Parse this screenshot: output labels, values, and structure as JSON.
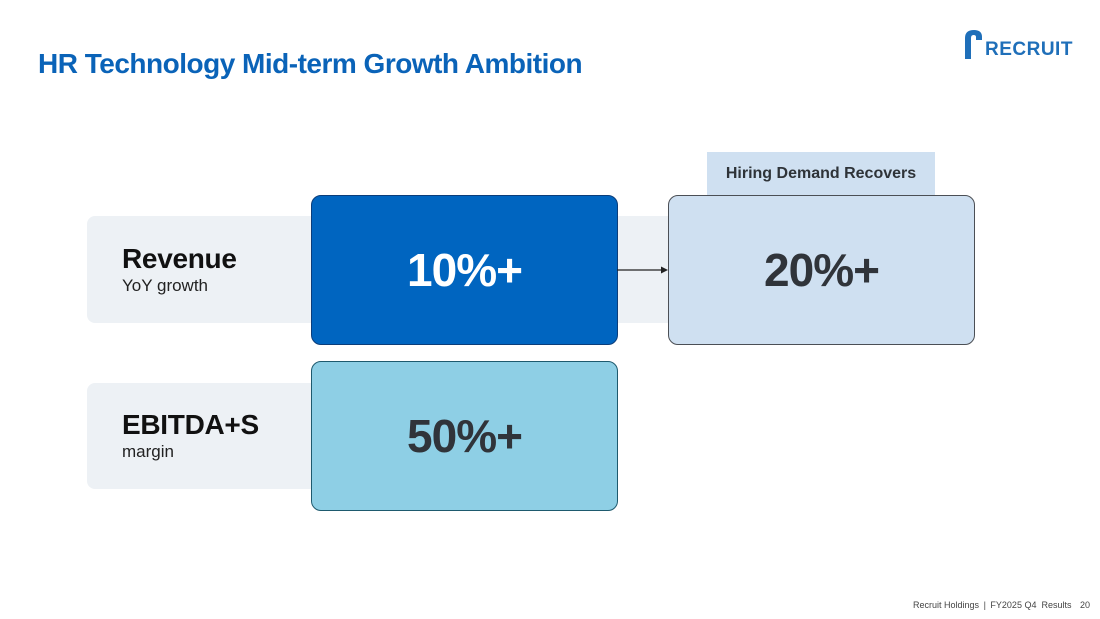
{
  "slide": {
    "title": "HR Technology Mid-term Growth Ambition",
    "logo_text": "RECRUIT",
    "rows": [
      {
        "label": "Revenue",
        "sublabel": "YoY growth",
        "current_value": "10%+",
        "future_tag": "Hiring Demand Recovers",
        "future_value": "20%+"
      },
      {
        "label": "EBITDA+S",
        "sublabel": "margin",
        "current_value": "50%+"
      }
    ],
    "footer": {
      "company": "Recruit Holdings",
      "separator": "|",
      "report": "FY2025 Q4  Results",
      "page_number": "20"
    }
  },
  "colors": {
    "title": "#0a63b8",
    "revenue_box": "#0065c0",
    "future_box": "#cfe0f1",
    "ebitda_box": "#8ecfe5",
    "row_background": "#edf1f5"
  }
}
